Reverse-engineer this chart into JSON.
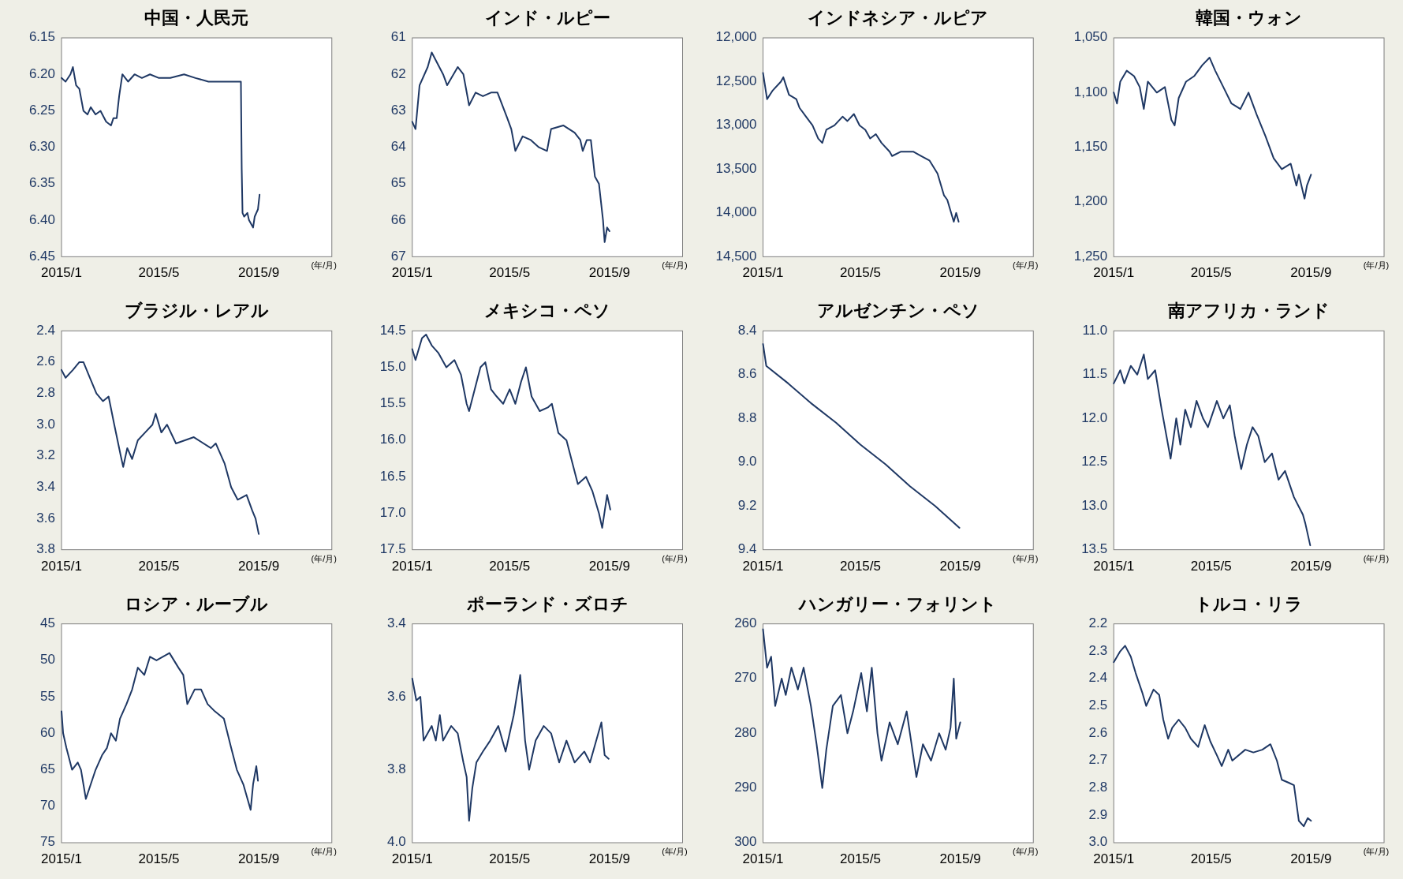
{
  "chart_data": [
    {
      "type": "line",
      "title": "中国・人民元",
      "xlabel": "(年/月)",
      "color": "#1f3864",
      "xlim": [
        "2015-01-01",
        "2015-11-30"
      ],
      "ylim": [
        6.45,
        6.15
      ],
      "xticks": [
        {
          "value": "2015-01-01",
          "label": "2015/1"
        },
        {
          "value": "2015-05-01",
          "label": "2015/5"
        },
        {
          "value": "2015-09-01",
          "label": "2015/9"
        }
      ],
      "yticks": [
        {
          "value": 6.15,
          "label": "6.15"
        },
        {
          "value": 6.2,
          "label": "6.20"
        },
        {
          "value": 6.25,
          "label": "6.25"
        },
        {
          "value": 6.3,
          "label": "6.30"
        },
        {
          "value": 6.35,
          "label": "6.35"
        },
        {
          "value": 6.4,
          "label": "6.40"
        },
        {
          "value": 6.45,
          "label": "6.45"
        }
      ],
      "x": [
        "2015-01-01",
        "2015-01-06",
        "2015-01-12",
        "2015-01-15",
        "2015-01-19",
        "2015-01-23",
        "2015-01-28",
        "2015-02-02",
        "2015-02-06",
        "2015-02-12",
        "2015-02-18",
        "2015-02-25",
        "2015-03-03",
        "2015-03-06",
        "2015-03-10",
        "2015-03-13",
        "2015-03-17",
        "2015-03-24",
        "2015-04-01",
        "2015-04-10",
        "2015-04-20",
        "2015-05-01",
        "2015-05-15",
        "2015-06-01",
        "2015-06-15",
        "2015-07-01",
        "2015-07-15",
        "2015-08-10",
        "2015-08-11",
        "2015-08-12",
        "2015-08-14",
        "2015-08-18",
        "2015-08-20",
        "2015-08-25",
        "2015-08-27",
        "2015-08-31",
        "2015-09-02"
      ],
      "values": [
        6.205,
        6.21,
        6.2,
        6.19,
        6.215,
        6.22,
        6.25,
        6.255,
        6.245,
        6.255,
        6.25,
        6.265,
        6.27,
        6.26,
        6.26,
        6.23,
        6.2,
        6.21,
        6.2,
        6.205,
        6.2,
        6.205,
        6.205,
        6.2,
        6.205,
        6.21,
        6.21,
        6.21,
        6.33,
        6.39,
        6.395,
        6.39,
        6.4,
        6.41,
        6.395,
        6.385,
        6.365
      ]
    },
    {
      "type": "line",
      "title": "インド・ルピー",
      "xlabel": "(年/月)",
      "color": "#1f3864",
      "xlim": [
        "2015-01-01",
        "2015-11-30"
      ],
      "ylim": [
        67,
        61
      ],
      "xticks": [
        {
          "value": "2015-01-01",
          "label": "2015/1"
        },
        {
          "value": "2015-05-01",
          "label": "2015/5"
        },
        {
          "value": "2015-09-01",
          "label": "2015/9"
        }
      ],
      "yticks": [
        61,
        62,
        63,
        64,
        65,
        66,
        67
      ],
      "x": [
        "2015-01-01",
        "2015-01-05",
        "2015-01-10",
        "2015-01-20",
        "2015-01-25",
        "2015-02-08",
        "2015-02-13",
        "2015-02-26",
        "2015-03-05",
        "2015-03-12",
        "2015-03-20",
        "2015-03-29",
        "2015-04-08",
        "2015-04-16",
        "2015-04-28",
        "2015-05-03",
        "2015-05-08",
        "2015-05-17",
        "2015-05-27",
        "2015-06-06",
        "2015-06-16",
        "2015-06-21",
        "2015-07-06",
        "2015-07-20",
        "2015-07-27",
        "2015-07-30",
        "2015-08-04",
        "2015-08-09",
        "2015-08-14",
        "2015-08-19",
        "2015-08-24",
        "2015-08-26",
        "2015-08-29",
        "2015-09-01"
      ],
      "values": [
        63.3,
        63.5,
        62.3,
        61.8,
        61.4,
        62.0,
        62.3,
        61.8,
        62.0,
        62.85,
        62.5,
        62.6,
        62.5,
        62.5,
        63.2,
        63.5,
        64.1,
        63.7,
        63.8,
        64.0,
        64.1,
        63.5,
        63.4,
        63.6,
        63.8,
        64.1,
        63.8,
        63.8,
        64.8,
        65.0,
        66.0,
        66.6,
        66.2,
        66.3
      ]
    },
    {
      "type": "line",
      "title": "インドネシア・ルピア",
      "xlabel": "(年/月)",
      "color": "#1f3864",
      "xlim": [
        "2015-01-01",
        "2015-11-30"
      ],
      "ylim": [
        14500,
        12000
      ],
      "xticks": [
        {
          "value": "2015-01-01",
          "label": "2015/1"
        },
        {
          "value": "2015-05-01",
          "label": "2015/5"
        },
        {
          "value": "2015-09-01",
          "label": "2015/9"
        }
      ],
      "yticks": [
        {
          "value": 12000,
          "label": "12,000"
        },
        {
          "value": 12500,
          "label": "12,500"
        },
        {
          "value": 13000,
          "label": "13,000"
        },
        {
          "value": 13500,
          "label": "13,500"
        },
        {
          "value": 14000,
          "label": "14,000"
        },
        {
          "value": 14500,
          "label": "14,500"
        }
      ],
      "x": [
        "2015-01-01",
        "2015-01-06",
        "2015-01-13",
        "2015-01-23",
        "2015-01-26",
        "2015-02-02",
        "2015-02-11",
        "2015-02-15",
        "2015-02-23",
        "2015-03-03",
        "2015-03-10",
        "2015-03-15",
        "2015-03-20",
        "2015-03-30",
        "2015-04-09",
        "2015-04-15",
        "2015-04-23",
        "2015-04-30",
        "2015-05-07",
        "2015-05-13",
        "2015-05-20",
        "2015-05-27",
        "2015-06-06",
        "2015-06-09",
        "2015-06-20",
        "2015-07-05",
        "2015-07-15",
        "2015-07-25",
        "2015-08-04",
        "2015-08-12",
        "2015-08-16",
        "2015-08-24",
        "2015-08-27",
        "2015-08-30"
      ],
      "values": [
        12400,
        12700,
        12600,
        12500,
        12450,
        12650,
        12700,
        12800,
        12900,
        13000,
        13150,
        13200,
        13050,
        13000,
        12900,
        12950,
        12870,
        13000,
        13050,
        13150,
        13100,
        13200,
        13300,
        13350,
        13300,
        13300,
        13350,
        13400,
        13550,
        13800,
        13850,
        14100,
        14000,
        14100
      ]
    },
    {
      "type": "line",
      "title": "韓国・ウォン",
      "xlabel": "(年/月)",
      "color": "#1f3864",
      "xlim": [
        "2015-01-01",
        "2015-11-30"
      ],
      "ylim": [
        1250,
        1050
      ],
      "xticks": [
        {
          "value": "2015-01-01",
          "label": "2015/1"
        },
        {
          "value": "2015-05-01",
          "label": "2015/5"
        },
        {
          "value": "2015-09-01",
          "label": "2015/9"
        }
      ],
      "yticks": [
        {
          "value": 1050,
          "label": "1,050"
        },
        {
          "value": 1100,
          "label": "1,100"
        },
        {
          "value": 1150,
          "label": "1,150"
        },
        {
          "value": 1200,
          "label": "1,200"
        },
        {
          "value": 1250,
          "label": "1,250"
        }
      ],
      "x": [
        "2015-01-01",
        "2015-01-05",
        "2015-01-09",
        "2015-01-17",
        "2015-01-26",
        "2015-02-02",
        "2015-02-07",
        "2015-02-12",
        "2015-02-23",
        "2015-03-05",
        "2015-03-13",
        "2015-03-17",
        "2015-03-22",
        "2015-03-31",
        "2015-04-10",
        "2015-04-20",
        "2015-04-29",
        "2015-05-06",
        "2015-05-16",
        "2015-05-26",
        "2015-06-06",
        "2015-06-16",
        "2015-06-26",
        "2015-07-07",
        "2015-07-17",
        "2015-07-27",
        "2015-08-07",
        "2015-08-14",
        "2015-08-17",
        "2015-08-24",
        "2015-08-27",
        "2015-09-01"
      ],
      "values": [
        1100,
        1110,
        1090,
        1080,
        1085,
        1095,
        1115,
        1090,
        1100,
        1095,
        1125,
        1130,
        1105,
        1090,
        1085,
        1075,
        1068,
        1080,
        1095,
        1110,
        1115,
        1100,
        1120,
        1140,
        1160,
        1170,
        1165,
        1185,
        1175,
        1197,
        1185,
        1175
      ]
    },
    {
      "type": "line",
      "title": "ブラジル・レアル",
      "xlabel": "(年/月)",
      "color": "#1f3864",
      "xlim": [
        "2015-01-01",
        "2015-11-30"
      ],
      "ylim": [
        3.8,
        2.4
      ],
      "xticks": [
        {
          "value": "2015-01-01",
          "label": "2015/1"
        },
        {
          "value": "2015-05-01",
          "label": "2015/5"
        },
        {
          "value": "2015-09-01",
          "label": "2015/9"
        }
      ],
      "yticks": [
        2.4,
        2.6,
        2.8,
        {
          "value": 3.0,
          "label": "3.0"
        },
        3.2,
        3.4,
        3.6,
        3.8
      ],
      "x": [
        "2015-01-01",
        "2015-01-06",
        "2015-01-15",
        "2015-01-23",
        "2015-01-28",
        "2015-02-05",
        "2015-02-13",
        "2015-02-21",
        "2015-02-28",
        "2015-03-07",
        "2015-03-15",
        "2015-03-18",
        "2015-03-23",
        "2015-03-29",
        "2015-04-05",
        "2015-04-14",
        "2015-04-23",
        "2015-04-27",
        "2015-05-04",
        "2015-05-11",
        "2015-05-22",
        "2015-06-02",
        "2015-06-13",
        "2015-07-04",
        "2015-07-10",
        "2015-07-21",
        "2015-07-29",
        "2015-08-06",
        "2015-08-17",
        "2015-08-24",
        "2015-08-28",
        "2015-09-01"
      ],
      "values": [
        2.65,
        2.7,
        2.65,
        2.6,
        2.6,
        2.7,
        2.8,
        2.85,
        2.82,
        3.0,
        3.2,
        3.27,
        3.15,
        3.22,
        3.1,
        3.05,
        3.0,
        2.93,
        3.05,
        3.0,
        3.12,
        3.1,
        3.08,
        3.15,
        3.12,
        3.25,
        3.4,
        3.48,
        3.45,
        3.55,
        3.6,
        3.7
      ]
    },
    {
      "type": "line",
      "title": "メキシコ・ペソ",
      "xlabel": "(年/月)",
      "color": "#1f3864",
      "xlim": [
        "2015-01-01",
        "2015-11-30"
      ],
      "ylim": [
        17.5,
        14.5
      ],
      "xticks": [
        {
          "value": "2015-01-01",
          "label": "2015/1"
        },
        {
          "value": "2015-05-01",
          "label": "2015/5"
        },
        {
          "value": "2015-09-01",
          "label": "2015/9"
        }
      ],
      "yticks": [
        14.5,
        {
          "value": 15,
          "label": "15.0"
        },
        15.5,
        {
          "value": 16,
          "label": "16.0"
        },
        16.5,
        {
          "value": 17,
          "label": "17.0"
        },
        17.5
      ],
      "x": [
        "2015-01-01",
        "2015-01-05",
        "2015-01-13",
        "2015-01-18",
        "2015-01-25",
        "2015-02-02",
        "2015-02-12",
        "2015-02-22",
        "2015-03-02",
        "2015-03-09",
        "2015-03-12",
        "2015-03-19",
        "2015-03-26",
        "2015-04-01",
        "2015-04-08",
        "2015-04-15",
        "2015-04-23",
        "2015-05-01",
        "2015-05-08",
        "2015-05-15",
        "2015-05-21",
        "2015-05-28",
        "2015-06-07",
        "2015-06-17",
        "2015-06-22",
        "2015-06-30",
        "2015-07-10",
        "2015-07-24",
        "2015-08-03",
        "2015-08-11",
        "2015-08-19",
        "2015-08-23",
        "2015-08-29",
        "2015-09-02"
      ],
      "values": [
        14.75,
        14.9,
        14.6,
        14.55,
        14.7,
        14.8,
        15.0,
        14.9,
        15.1,
        15.5,
        15.6,
        15.3,
        15.0,
        14.93,
        15.3,
        15.4,
        15.5,
        15.3,
        15.5,
        15.2,
        15.0,
        15.4,
        15.6,
        15.55,
        15.5,
        15.9,
        16.0,
        16.6,
        16.5,
        16.7,
        17.0,
        17.2,
        16.75,
        16.95
      ]
    },
    {
      "type": "line",
      "title": "アルゼンチン・ペソ",
      "xlabel": "(年/月)",
      "color": "#1f3864",
      "xlim": [
        "2015-01-01",
        "2015-11-30"
      ],
      "ylim": [
        9.4,
        8.4
      ],
      "xticks": [
        {
          "value": "2015-01-01",
          "label": "2015/1"
        },
        {
          "value": "2015-05-01",
          "label": "2015/5"
        },
        {
          "value": "2015-09-01",
          "label": "2015/9"
        }
      ],
      "yticks": [
        8.4,
        8.6,
        8.8,
        {
          "value": 9.0,
          "label": "9.0"
        },
        9.2,
        9.4
      ],
      "x": [
        "2015-01-01",
        "2015-01-05",
        "2015-02-01",
        "2015-03-01",
        "2015-04-01",
        "2015-05-01",
        "2015-06-01",
        "2015-07-01",
        "2015-08-01",
        "2015-08-31"
      ],
      "values": [
        8.46,
        8.56,
        8.64,
        8.73,
        8.82,
        8.92,
        9.01,
        9.11,
        9.2,
        9.3
      ]
    },
    {
      "type": "line",
      "title": "南アフリカ・ランド",
      "xlabel": "(年/月)",
      "color": "#1f3864",
      "xlim": [
        "2015-01-01",
        "2015-11-30"
      ],
      "ylim": [
        13.5,
        11.0
      ],
      "xticks": [
        {
          "value": "2015-01-01",
          "label": "2015/1"
        },
        {
          "value": "2015-05-01",
          "label": "2015/5"
        },
        {
          "value": "2015-09-01",
          "label": "2015/9"
        }
      ],
      "yticks": [
        {
          "value": 11,
          "label": "11.0"
        },
        11.5,
        {
          "value": 12,
          "label": "12.0"
        },
        12.5,
        {
          "value": 13,
          "label": "13.0"
        },
        13.5
      ],
      "x": [
        "2015-01-01",
        "2015-01-09",
        "2015-01-14",
        "2015-01-22",
        "2015-01-30",
        "2015-02-07",
        "2015-02-12",
        "2015-02-21",
        "2015-03-01",
        "2015-03-12",
        "2015-03-19",
        "2015-03-24",
        "2015-03-30",
        "2015-04-06",
        "2015-04-13",
        "2015-04-21",
        "2015-04-27",
        "2015-05-08",
        "2015-05-16",
        "2015-05-24",
        "2015-05-30",
        "2015-06-07",
        "2015-06-14",
        "2015-06-21",
        "2015-06-28",
        "2015-07-06",
        "2015-07-15",
        "2015-07-23",
        "2015-07-31",
        "2015-08-11",
        "2015-08-22",
        "2015-08-25",
        "2015-08-31"
      ],
      "values": [
        11.6,
        11.45,
        11.6,
        11.4,
        11.5,
        11.27,
        11.55,
        11.45,
        11.9,
        12.46,
        12.0,
        12.3,
        11.9,
        12.1,
        11.8,
        12.0,
        12.1,
        11.8,
        12.0,
        11.85,
        12.2,
        12.58,
        12.3,
        12.1,
        12.2,
        12.5,
        12.4,
        12.7,
        12.6,
        12.9,
        13.1,
        13.2,
        13.45
      ]
    },
    {
      "type": "line",
      "title": "ロシア・ルーブル",
      "xlabel": "(年/月)",
      "color": "#1f3864",
      "xlim": [
        "2015-01-01",
        "2015-11-30"
      ],
      "ylim": [
        75,
        45
      ],
      "xticks": [
        {
          "value": "2015-01-01",
          "label": "2015/1"
        },
        {
          "value": "2015-05-01",
          "label": "2015/5"
        },
        {
          "value": "2015-09-01",
          "label": "2015/9"
        }
      ],
      "yticks": [
        45,
        50,
        55,
        60,
        65,
        70,
        75
      ],
      "x": [
        "2015-01-01",
        "2015-01-03",
        "2015-01-07",
        "2015-01-14",
        "2015-01-21",
        "2015-01-25",
        "2015-01-31",
        "2015-02-06",
        "2015-02-12",
        "2015-02-20",
        "2015-02-26",
        "2015-03-03",
        "2015-03-09",
        "2015-03-14",
        "2015-03-22",
        "2015-03-29",
        "2015-04-05",
        "2015-04-13",
        "2015-04-20",
        "2015-04-28",
        "2015-05-14",
        "2015-05-25",
        "2015-05-31",
        "2015-06-05",
        "2015-06-14",
        "2015-06-22",
        "2015-06-30",
        "2015-07-09",
        "2015-07-20",
        "2015-07-29",
        "2015-08-05",
        "2015-08-13",
        "2015-08-22",
        "2015-08-25",
        "2015-08-29",
        "2015-08-31"
      ],
      "values": [
        57,
        60,
        62,
        65,
        64,
        65,
        69,
        67,
        65,
        63,
        62,
        60,
        61,
        58,
        56,
        54,
        51,
        52,
        49.5,
        50,
        49,
        51,
        52,
        56,
        54,
        54,
        56,
        57,
        58,
        62,
        65,
        67,
        70.5,
        67,
        64.5,
        66.5
      ]
    },
    {
      "type": "line",
      "title": "ポーランド・ズロチ",
      "xlabel": "(年/月)",
      "color": "#1f3864",
      "xlim": [
        "2015-01-01",
        "2015-11-30"
      ],
      "ylim": [
        4.0,
        3.4
      ],
      "xticks": [
        {
          "value": "2015-01-01",
          "label": "2015/1"
        },
        {
          "value": "2015-05-01",
          "label": "2015/5"
        },
        {
          "value": "2015-09-01",
          "label": "2015/9"
        }
      ],
      "yticks": [
        3.4,
        3.6,
        3.8,
        {
          "value": 4.0,
          "label": "4.0"
        }
      ],
      "x": [
        "2015-01-01",
        "2015-01-06",
        "2015-01-11",
        "2015-01-15",
        "2015-01-25",
        "2015-01-30",
        "2015-02-04",
        "2015-02-08",
        "2015-02-18",
        "2015-02-26",
        "2015-03-05",
        "2015-03-09",
        "2015-03-12",
        "2015-03-16",
        "2015-03-21",
        "2015-03-29",
        "2015-04-07",
        "2015-04-17",
        "2015-04-26",
        "2015-05-06",
        "2015-05-14",
        "2015-05-20",
        "2015-05-25",
        "2015-06-02",
        "2015-06-12",
        "2015-06-21",
        "2015-07-01",
        "2015-07-10",
        "2015-07-20",
        "2015-08-01",
        "2015-08-08",
        "2015-08-22",
        "2015-08-26",
        "2015-08-31"
      ],
      "values": [
        3.55,
        3.61,
        3.6,
        3.72,
        3.68,
        3.72,
        3.65,
        3.72,
        3.68,
        3.7,
        3.78,
        3.82,
        3.94,
        3.85,
        3.78,
        3.75,
        3.72,
        3.68,
        3.75,
        3.65,
        3.54,
        3.72,
        3.8,
        3.72,
        3.68,
        3.7,
        3.78,
        3.72,
        3.78,
        3.75,
        3.78,
        3.67,
        3.76,
        3.77
      ]
    },
    {
      "type": "line",
      "title": "ハンガリー・フォリント",
      "xlabel": "(年/月)",
      "color": "#1f3864",
      "xlim": [
        "2015-01-01",
        "2015-11-30"
      ],
      "ylim": [
        300,
        260
      ],
      "xticks": [
        {
          "value": "2015-01-01",
          "label": "2015/1"
        },
        {
          "value": "2015-05-01",
          "label": "2015/5"
        },
        {
          "value": "2015-09-01",
          "label": "2015/9"
        }
      ],
      "yticks": [
        260,
        270,
        280,
        290,
        300
      ],
      "x": [
        "2015-01-01",
        "2015-01-06",
        "2015-01-11",
        "2015-01-16",
        "2015-01-24",
        "2015-01-29",
        "2015-02-05",
        "2015-02-13",
        "2015-02-20",
        "2015-03-01",
        "2015-03-08",
        "2015-03-15",
        "2015-03-20",
        "2015-03-28",
        "2015-04-07",
        "2015-04-15",
        "2015-04-22",
        "2015-05-02",
        "2015-05-09",
        "2015-05-15",
        "2015-05-22",
        "2015-05-27",
        "2015-06-06",
        "2015-06-16",
        "2015-06-27",
        "2015-07-05",
        "2015-07-09",
        "2015-07-17",
        "2015-07-27",
        "2015-08-06",
        "2015-08-14",
        "2015-08-20",
        "2015-08-24",
        "2015-08-27",
        "2015-09-01"
      ],
      "values": [
        261,
        268,
        266,
        275,
        270,
        273,
        268,
        272,
        268,
        275,
        282,
        290,
        283,
        275,
        273,
        280,
        276,
        269,
        276,
        268,
        280,
        285,
        278,
        282,
        276,
        284,
        288,
        282,
        285,
        280,
        283,
        279,
        270,
        281,
        278
      ]
    },
    {
      "type": "line",
      "title": "トルコ・リラ",
      "xlabel": "(年/月)",
      "color": "#1f3864",
      "xlim": [
        "2015-01-01",
        "2015-11-30"
      ],
      "ylim": [
        3.0,
        2.2
      ],
      "xticks": [
        {
          "value": "2015-01-01",
          "label": "2015/1"
        },
        {
          "value": "2015-05-01",
          "label": "2015/5"
        },
        {
          "value": "2015-09-01",
          "label": "2015/9"
        }
      ],
      "yticks": [
        2.2,
        2.3,
        2.4,
        2.5,
        2.6,
        2.7,
        2.8,
        2.9,
        {
          "value": 3.0,
          "label": "3.0"
        }
      ],
      "x": [
        "2015-01-01",
        "2015-01-09",
        "2015-01-15",
        "2015-01-22",
        "2015-01-28",
        "2015-02-05",
        "2015-02-10",
        "2015-02-19",
        "2015-02-26",
        "2015-03-03",
        "2015-03-09",
        "2015-03-14",
        "2015-03-22",
        "2015-03-30",
        "2015-04-06",
        "2015-04-15",
        "2015-04-23",
        "2015-04-30",
        "2015-05-08",
        "2015-05-14",
        "2015-05-22",
        "2015-05-27",
        "2015-06-12",
        "2015-06-22",
        "2015-07-03",
        "2015-07-13",
        "2015-07-21",
        "2015-07-27",
        "2015-08-04",
        "2015-08-11",
        "2015-08-17",
        "2015-08-23",
        "2015-08-28",
        "2015-09-01"
      ],
      "values": [
        2.34,
        2.3,
        2.28,
        2.32,
        2.38,
        2.45,
        2.5,
        2.44,
        2.46,
        2.55,
        2.62,
        2.58,
        2.55,
        2.58,
        2.62,
        2.65,
        2.57,
        2.63,
        2.68,
        2.72,
        2.66,
        2.7,
        2.66,
        2.67,
        2.66,
        2.64,
        2.7,
        2.77,
        2.78,
        2.79,
        2.92,
        2.94,
        2.91,
        2.92
      ]
    }
  ]
}
